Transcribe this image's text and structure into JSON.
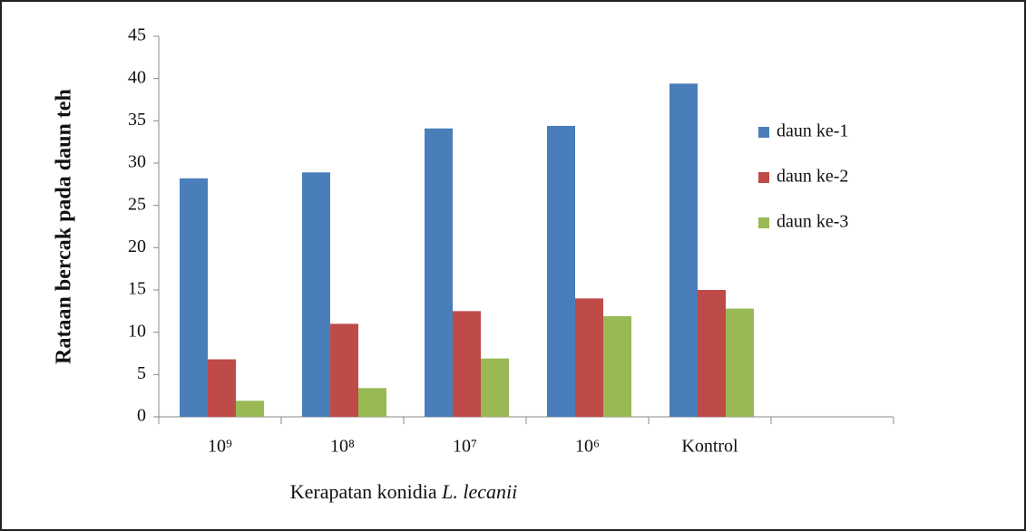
{
  "chart_data": {
    "type": "bar",
    "y_label": "Rataan bercak pada daun teh",
    "x_label": [
      "Kerapatan konidia",
      "L. lecanii"
    ],
    "categories": [
      "10⁹",
      "10⁸",
      "10⁷",
      "10⁶",
      "Kontrol",
      null
    ],
    "series": [
      {
        "name": "daun ke-1",
        "color": "#4a7ebb",
        "values": [
          28.2,
          28.9,
          34.1,
          34.4,
          39.4,
          null
        ]
      },
      {
        "name": "daun ke-2",
        "color": "#be4b48",
        "values": [
          6.8,
          11,
          12.5,
          14,
          15,
          null
        ]
      },
      {
        "name": "daun ke-3",
        "color": "#98b954",
        "values": [
          1.9,
          3.4,
          6.9,
          11.9,
          12.8,
          null
        ]
      }
    ],
    "ylim": [
      0,
      45
    ],
    "yticks": [
      0,
      5,
      10,
      15,
      20,
      25,
      30,
      35,
      40,
      45
    ],
    "legend": "right",
    "grid": false
  }
}
